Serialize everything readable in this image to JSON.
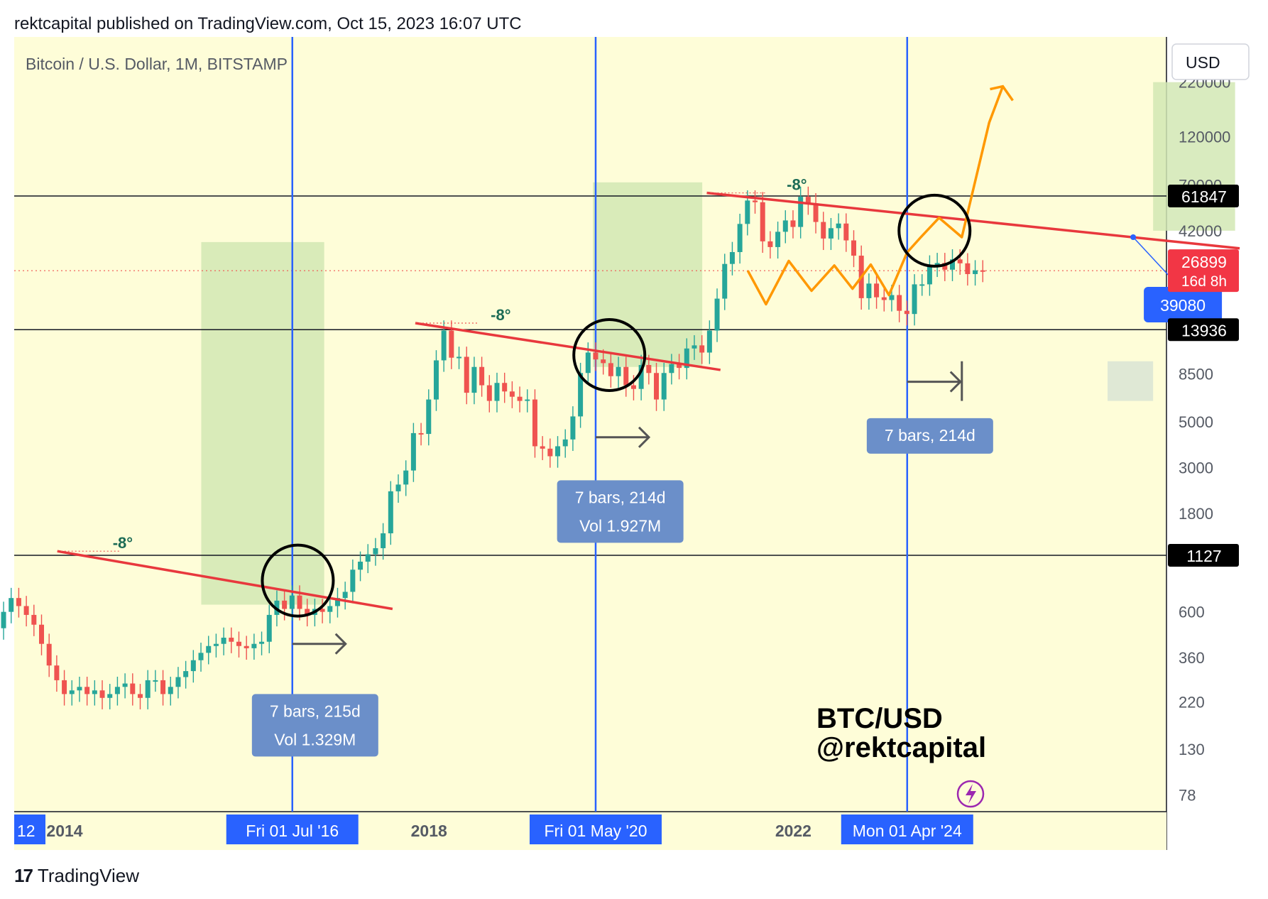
{
  "header": {
    "published_line": "rektcapital published on TradingView.com, Oct 15, 2023 16:07 UTC"
  },
  "footer": {
    "brand": "TradingView",
    "logo_glyph": "17"
  },
  "chart_data": {
    "type": "candlestick",
    "title": "Bitcoin / U.S. Dollar, 1M, BITSTAMP",
    "currency_button": "USD",
    "scale": "log",
    "y_ticks": [
      "220000",
      "120000",
      "70000",
      "42000",
      "8500",
      "5000",
      "3000",
      "1800",
      "600",
      "360",
      "220",
      "130",
      "78"
    ],
    "x_ticks": [
      "12",
      "2014",
      "2018",
      "2022"
    ],
    "price_badges": [
      {
        "value": "61847",
        "bg": "#000000"
      },
      {
        "value": "13936",
        "bg": "#000000"
      },
      {
        "value": "1127",
        "bg": "#000000"
      }
    ],
    "current_price": {
      "value": "26899",
      "countdown": "16d 8h",
      "bg": "#f23645"
    },
    "date_markers": [
      "Fri 01 Jul '16",
      "Fri 01 May '20",
      "Mon 01 Apr '24"
    ],
    "angle_labels": [
      "-8°",
      "-8°",
      "-8°"
    ],
    "range_labels": [
      {
        "bars": "7 bars, 215d",
        "vol": "Vol 1.329M"
      },
      {
        "bars": "7 bars, 214d",
        "vol": "Vol 1.927M"
      },
      {
        "bars": "7 bars, 214d",
        "vol": ""
      }
    ],
    "projection_callout": "39080",
    "watermark": [
      "BTC/USD",
      "@rektcapital"
    ],
    "colors": {
      "background": "#fefdd8",
      "up": "#26a69a",
      "down": "#ef5350",
      "trendline": "#e8383d",
      "vertical": "#2962ff",
      "projection": "#ff9800",
      "box": "#d2e8b4",
      "badge_blue": "#6b8fc9"
    },
    "monthly_close": [
      600,
      820,
      700,
      760,
      580,
      560,
      480,
      440,
      380,
      360,
      340,
      320,
      330,
      440,
      620,
      1120,
      1000,
      820,
      700,
      640,
      500,
      600,
      700,
      640,
      580,
      520,
      420,
      330,
      280,
      240,
      250,
      260,
      240,
      250,
      230,
      240,
      260,
      270,
      240,
      230,
      280,
      280,
      240,
      260,
      290,
      310,
      350,
      380,
      410,
      420,
      450,
      430,
      410,
      400,
      420,
      430,
      580,
      680,
      620,
      720,
      620,
      580,
      620,
      600,
      640,
      700,
      750,
      960,
      1050,
      1140,
      1220,
      1440,
      2300,
      2480,
      2900,
      4400,
      4360,
      6400,
      9900,
      13800,
      10200,
      10300,
      6900,
      9200,
      7500,
      6300,
      7700,
      7000,
      6600,
      6300,
      6400,
      3800,
      3700,
      3400,
      3800,
      4100,
      5300,
      8600,
      10800,
      10000,
      9600,
      8300,
      9200,
      7500,
      7200,
      9400,
      8600,
      6400,
      8600,
      9500,
      9100,
      11300,
      11700,
      10800,
      13800,
      19700,
      29000,
      33100,
      45300,
      58800,
      57700,
      37300,
      35000,
      41500,
      47100,
      43800,
      61300,
      57000,
      46300,
      38500,
      43200,
      45500,
      37700,
      31800,
      19800,
      23300,
      20000,
      19400,
      20500,
      17200,
      16600,
      23100,
      23100,
      28500,
      29300,
      27200,
      30500,
      29200,
      25900,
      27000,
      26899
    ],
    "projection_path": [
      [
        2023.85,
        26899
      ],
      [
        2024.05,
        18500
      ],
      [
        2024.3,
        30000
      ],
      [
        2024.55,
        21500
      ],
      [
        2024.8,
        28500
      ],
      [
        2025.0,
        22000
      ],
      [
        2025.2,
        28800
      ],
      [
        2025.4,
        20500
      ],
      [
        2025.6,
        33000
      ],
      [
        2025.75,
        39080
      ],
      [
        2025.95,
        48500
      ],
      [
        2026.2,
        39080
      ],
      [
        2026.5,
        140000
      ],
      [
        2026.65,
        210000
      ]
    ],
    "trendlines": [
      {
        "from": [
          2013.92,
          1180
        ],
        "to": [
          2017.6,
          620
        ]
      },
      {
        "from": [
          2017.85,
          15000
        ],
        "to": [
          2021.2,
          8900
        ]
      },
      {
        "from": [
          2021.05,
          64000
        ],
        "to": [
          2026.9,
          34500
        ]
      }
    ]
  }
}
